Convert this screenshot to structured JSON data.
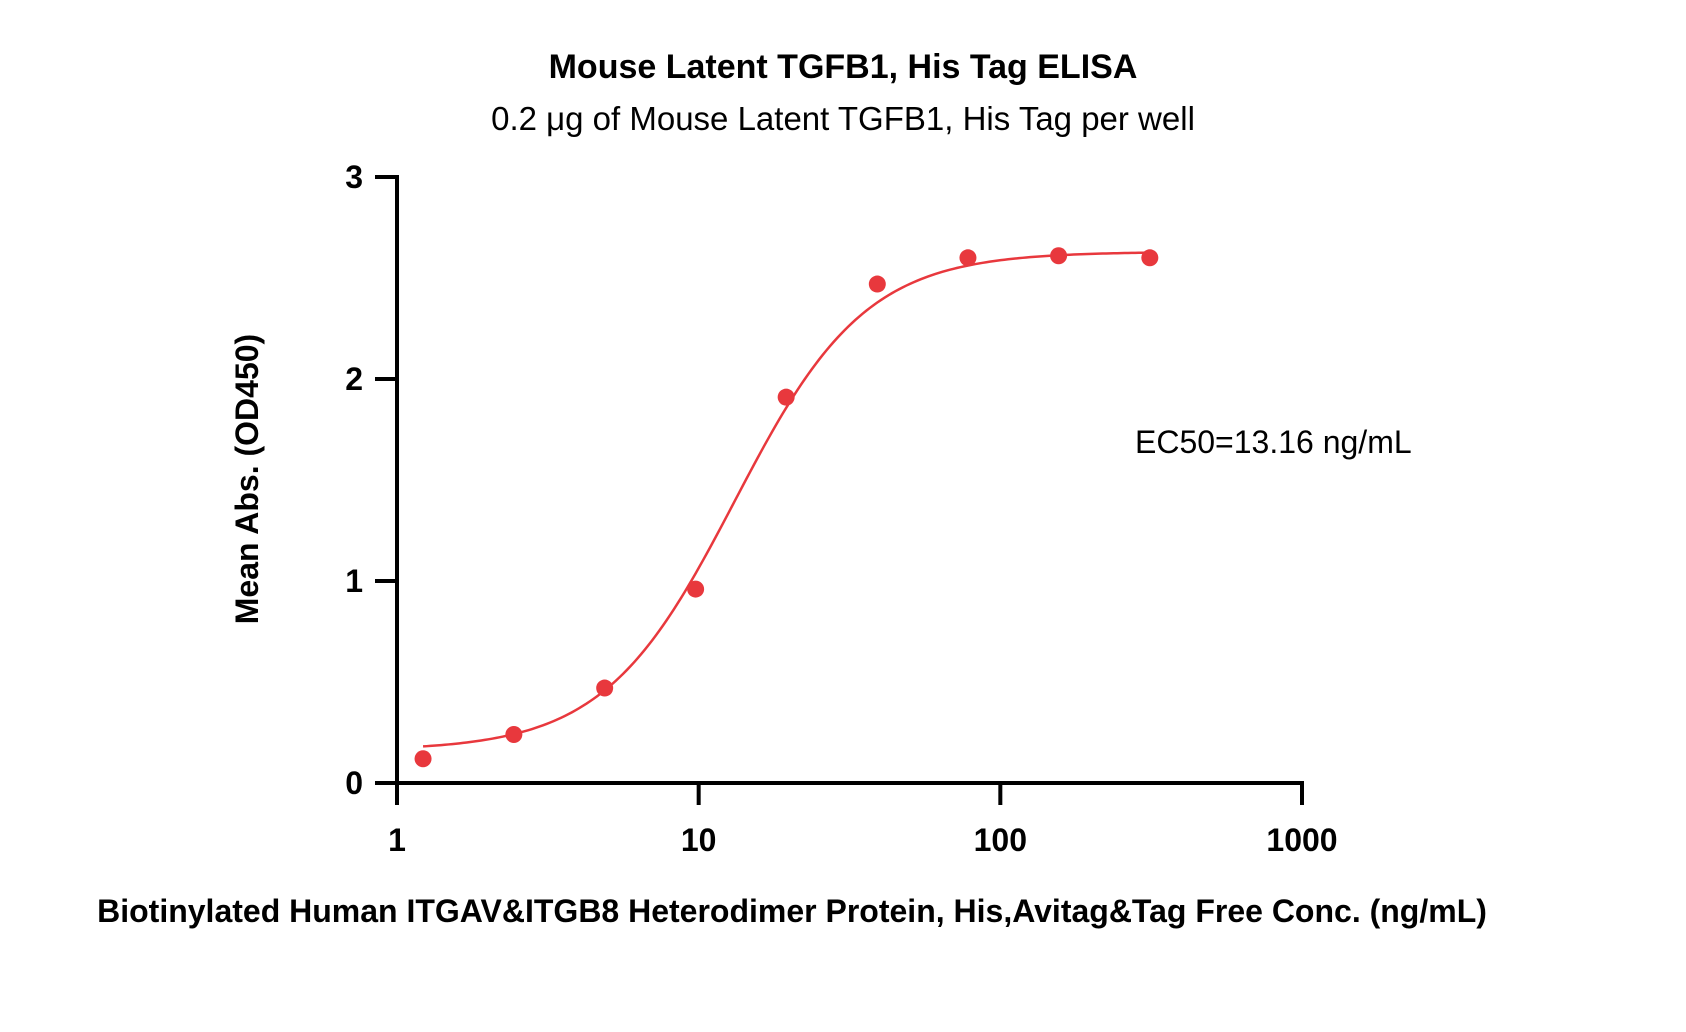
{
  "chart_data": {
    "type": "scatter",
    "title": "Mouse Latent TGFB1, His Tag ELISA",
    "subtitle": "0.2 μg of Mouse Latent TGFB1, His Tag per well",
    "xlabel": "Biotinylated Human ITGAV&ITGB8 Heterodimer Protein, His,Avitag&Tag Free Conc. (ng/mL)",
    "ylabel": "Mean Abs. (OD450)",
    "x_scale": "log10",
    "xlim": [
      1,
      1000
    ],
    "ylim": [
      0,
      3
    ],
    "x_ticks": [
      1,
      10,
      100,
      1000
    ],
    "x_tick_labels": [
      "1",
      "10",
      "100",
      "1000"
    ],
    "y_ticks": [
      0,
      1,
      2,
      3
    ],
    "y_tick_labels": [
      "0",
      "1",
      "2",
      "3"
    ],
    "grid": false,
    "series": [
      {
        "color": "#e8383d",
        "x": [
          1.22,
          2.44,
          4.88,
          9.77,
          19.5,
          39.1,
          78.1,
          156,
          313
        ],
        "y": [
          0.12,
          0.24,
          0.47,
          0.96,
          1.91,
          2.47,
          2.6,
          2.61,
          2.6
        ]
      }
    ],
    "fit": {
      "model": "4PL",
      "bottom": 0.16,
      "top": 2.63,
      "ec50": 13.16,
      "hill": 2.0
    },
    "annotation": "EC50=13.16 ng/mL"
  }
}
